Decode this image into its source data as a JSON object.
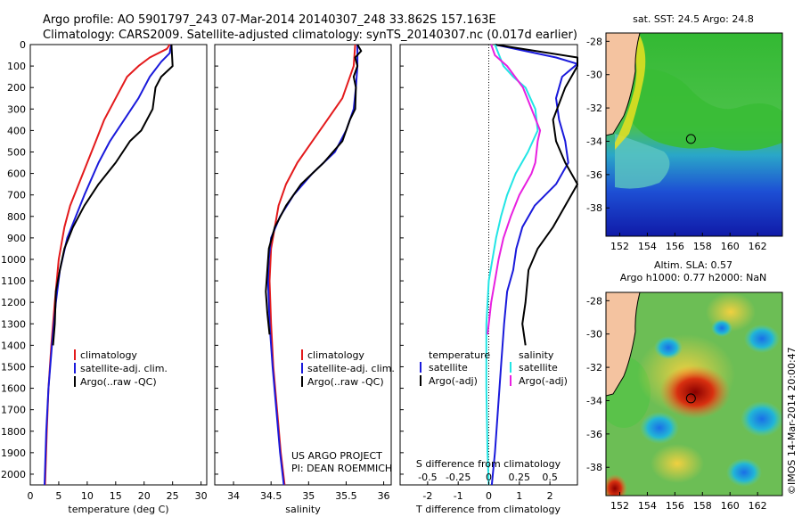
{
  "header": {
    "line1": "Argo profile: AO 5901797_243 07-Mar-2014 20140307_248 33.862S 157.163E",
    "line2": "Climatology: CARS2009. Satellite-adjusted climatology: synTS_20140307.nc (0.017d earlier)"
  },
  "depth_ticks": [
    "0",
    "100",
    "200",
    "300",
    "400",
    "500",
    "600",
    "700",
    "800",
    "900",
    "1000",
    "1100",
    "1200",
    "1300",
    "1400",
    "1500",
    "1600",
    "1700",
    "1800",
    "1900",
    "2000"
  ],
  "colors": {
    "climatology": "#e31a1c",
    "satellite": "#1a1adb",
    "argo": "#000000",
    "sat_s": "#22e5e5",
    "argo_s": "#e820e0",
    "land": "#f4c3a0"
  },
  "chart_data": [
    {
      "type": "line",
      "id": "temperature",
      "xlabel": "temperature (deg C)",
      "xlim": [
        0,
        31
      ],
      "xticks": [
        "0",
        "5",
        "10",
        "15",
        "20",
        "25",
        "30"
      ],
      "ylim": [
        0,
        2050
      ],
      "y_reversed": true,
      "legend": [
        "climatology",
        "satellite-adj. clim.",
        "Argo(..raw -QC)"
      ],
      "series": [
        {
          "name": "climatology",
          "color": "#e31a1c",
          "points": [
            [
              24.5,
              0
            ],
            [
              24,
              20
            ],
            [
              21,
              60
            ],
            [
              19,
              100
            ],
            [
              17,
              150
            ],
            [
              15,
              250
            ],
            [
              13,
              350
            ],
            [
              11.5,
              450
            ],
            [
              10,
              550
            ],
            [
              8.5,
              650
            ],
            [
              7,
              750
            ],
            [
              6,
              850
            ],
            [
              5,
              1000
            ],
            [
              4.3,
              1200
            ],
            [
              3.7,
              1400
            ],
            [
              3.2,
              1600
            ],
            [
              2.9,
              1800
            ],
            [
              2.6,
              2050
            ]
          ]
        },
        {
          "name": "satellite-adj. clim.",
          "color": "#1a1adb",
          "points": [
            [
              24.8,
              0
            ],
            [
              24.6,
              20
            ],
            [
              24.5,
              40
            ],
            [
              23,
              80
            ],
            [
              21,
              150
            ],
            [
              19,
              250
            ],
            [
              16.5,
              350
            ],
            [
              14,
              450
            ],
            [
              12,
              550
            ],
            [
              9.5,
              700
            ],
            [
              8,
              800
            ],
            [
              6.5,
              900
            ],
            [
              5.2,
              1050
            ],
            [
              4.5,
              1200
            ],
            [
              3.8,
              1400
            ],
            [
              3.2,
              1600
            ],
            [
              2.8,
              1800
            ],
            [
              2.5,
              2050
            ]
          ]
        },
        {
          "name": "Argo(..raw -QC)",
          "color": "#000000",
          "points": [
            [
              24.8,
              0
            ],
            [
              25,
              100
            ],
            [
              23,
              150
            ],
            [
              22,
              200
            ],
            [
              21.5,
              300
            ],
            [
              19.5,
              400
            ],
            [
              17.5,
              450
            ],
            [
              15,
              550
            ],
            [
              12,
              650
            ],
            [
              9.5,
              750
            ],
            [
              7.5,
              850
            ],
            [
              6,
              950
            ],
            [
              5.2,
              1050
            ],
            [
              4.5,
              1150
            ],
            [
              4.3,
              1300
            ],
            [
              4,
              1400
            ]
          ]
        }
      ]
    },
    {
      "type": "line",
      "id": "salinity",
      "xlabel": "salinity",
      "xlim": [
        33.75,
        36.1
      ],
      "xticks": [
        "34",
        "34.5",
        "35",
        "35.5",
        "36"
      ],
      "ylim": [
        0,
        2050
      ],
      "y_reversed": true,
      "legend": [
        "climatology",
        "satellite-adj. clim.",
        "Argo(..raw -QC)"
      ],
      "annotation": [
        "US ARGO PROJECT",
        "PI: DEAN ROEMMICH"
      ],
      "series": [
        {
          "name": "climatology",
          "color": "#e31a1c",
          "points": [
            [
              35.62,
              0
            ],
            [
              35.6,
              100
            ],
            [
              35.55,
              150
            ],
            [
              35.45,
              250
            ],
            [
              35.25,
              350
            ],
            [
              35.05,
              450
            ],
            [
              34.85,
              550
            ],
            [
              34.7,
              650
            ],
            [
              34.6,
              750
            ],
            [
              34.55,
              850
            ],
            [
              34.5,
              950
            ],
            [
              34.48,
              1100
            ],
            [
              34.5,
              1300
            ],
            [
              34.53,
              1500
            ],
            [
              34.58,
              1700
            ],
            [
              34.63,
              1900
            ],
            [
              34.68,
              2050
            ]
          ]
        },
        {
          "name": "satellite-adj. clim.",
          "color": "#1a1adb",
          "points": [
            [
              35.65,
              0
            ],
            [
              35.65,
              100
            ],
            [
              35.63,
              200
            ],
            [
              35.6,
              300
            ],
            [
              35.5,
              400
            ],
            [
              35.35,
              500
            ],
            [
              35.05,
              600
            ],
            [
              34.8,
              700
            ],
            [
              34.62,
              800
            ],
            [
              34.5,
              900
            ],
            [
              34.47,
              1000
            ],
            [
              34.46,
              1100
            ],
            [
              34.48,
              1300
            ],
            [
              34.52,
              1500
            ],
            [
              34.57,
              1700
            ],
            [
              34.62,
              1900
            ],
            [
              34.67,
              2050
            ]
          ]
        },
        {
          "name": "Argo(..raw -QC)",
          "color": "#000000",
          "points": [
            [
              35.65,
              0
            ],
            [
              35.7,
              30
            ],
            [
              35.62,
              60
            ],
            [
              35.65,
              100
            ],
            [
              35.6,
              150
            ],
            [
              35.63,
              200
            ],
            [
              35.62,
              300
            ],
            [
              35.55,
              350
            ],
            [
              35.45,
              450
            ],
            [
              35.2,
              550
            ],
            [
              34.9,
              650
            ],
            [
              34.7,
              750
            ],
            [
              34.55,
              850
            ],
            [
              34.47,
              950
            ],
            [
              34.45,
              1050
            ],
            [
              34.43,
              1150
            ],
            [
              34.45,
              1250
            ],
            [
              34.48,
              1350
            ]
          ]
        }
      ]
    },
    {
      "type": "line",
      "id": "difference",
      "xlabel": "T difference from climatology",
      "xlabel_top": "S difference from climatology",
      "xlim": [
        -2.9,
        2.9
      ],
      "xticks": [
        "-2",
        "-1",
        "0",
        "1",
        "2"
      ],
      "sticks": [
        "-0.5",
        "-0.25",
        "0",
        "0.25",
        "0.5"
      ],
      "ylim": [
        0,
        2050
      ],
      "y_reversed": true,
      "legend_temperature": {
        "title": "temperature",
        "items": [
          "satellite",
          "Argo(-adj)"
        ]
      },
      "legend_salinity": {
        "title": "salinity",
        "items": [
          "satellite",
          "Argo(-adj)"
        ]
      },
      "series": [
        {
          "name": "temperature satellite",
          "color": "#1a1adb",
          "points": [
            [
              0.2,
              0
            ],
            [
              2.2,
              60
            ],
            [
              2.9,
              90
            ],
            [
              2.4,
              150
            ],
            [
              2.2,
              250
            ],
            [
              2.3,
              350
            ],
            [
              2.5,
              450
            ],
            [
              2.6,
              550
            ],
            [
              2.2,
              650
            ],
            [
              1.5,
              750
            ],
            [
              1.1,
              850
            ],
            [
              0.9,
              950
            ],
            [
              0.8,
              1050
            ],
            [
              0.6,
              1150
            ],
            [
              0.5,
              1300
            ],
            [
              0.4,
              1500
            ],
            [
              0.3,
              1700
            ],
            [
              0.2,
              1900
            ],
            [
              0.1,
              2050
            ]
          ]
        },
        {
          "name": "temperature Argo(-adj)",
          "color": "#000000",
          "points": [
            [
              0.2,
              0
            ],
            [
              2.9,
              60
            ],
            [
              2.9,
              100
            ],
            [
              2.5,
              200
            ],
            [
              2.1,
              350
            ],
            [
              2.2,
              450
            ],
            [
              2.5,
              550
            ],
            [
              2.9,
              650
            ],
            [
              2.5,
              750
            ],
            [
              2.1,
              850
            ],
            [
              1.6,
              950
            ],
            [
              1.3,
              1050
            ],
            [
              1.2,
              1200
            ],
            [
              1.1,
              1300
            ],
            [
              1.2,
              1400
            ]
          ]
        },
        {
          "name": "salinity satellite",
          "color": "#22e5e5",
          "points": [
            [
              0.05,
              0
            ],
            [
              0.12,
              100
            ],
            [
              0.2,
              150
            ],
            [
              0.3,
              200
            ],
            [
              0.38,
              300
            ],
            [
              0.4,
              400
            ],
            [
              0.32,
              500
            ],
            [
              0.22,
              600
            ],
            [
              0.15,
              700
            ],
            [
              0.1,
              800
            ],
            [
              0.06,
              900
            ],
            [
              0.03,
              1000
            ],
            [
              0,
              1100
            ],
            [
              -0.02,
              1300
            ],
            [
              -0.02,
              1600
            ],
            [
              -0.01,
              1900
            ],
            [
              0,
              2050
            ]
          ]
        },
        {
          "name": "salinity Argo(-adj)",
          "color": "#e820e0",
          "points": [
            [
              0.02,
              0
            ],
            [
              0.05,
              50
            ],
            [
              0.15,
              100
            ],
            [
              0.28,
              200
            ],
            [
              0.35,
              300
            ],
            [
              0.42,
              400
            ],
            [
              0.4,
              450
            ],
            [
              0.38,
              550
            ],
            [
              0.35,
              600
            ],
            [
              0.3,
              650
            ],
            [
              0.25,
              700
            ],
            [
              0.18,
              800
            ],
            [
              0.12,
              900
            ],
            [
              0.08,
              1000
            ],
            [
              0.05,
              1100
            ],
            [
              0.02,
              1200
            ],
            [
              0,
              1300
            ],
            [
              -0.01,
              1350
            ]
          ]
        }
      ]
    }
  ],
  "map_top": {
    "title": "sat. SST: 24.5  Argo: 24.8",
    "yticks": [
      "-28",
      "-30",
      "-32",
      "-34",
      "-36",
      "-38"
    ],
    "xticks": [
      "152",
      "154",
      "156",
      "158",
      "160",
      "162"
    ],
    "argo_lon": 157.163,
    "argo_lat": -33.862
  },
  "map_bottom": {
    "title1": "Altim. SLA: 0.57",
    "title2": "Argo h1000: 0.77 h2000: NaN",
    "yticks": [
      "-28",
      "-30",
      "-32",
      "-34",
      "-36",
      "-38"
    ],
    "xticks": [
      "152",
      "154",
      "156",
      "158",
      "160",
      "162"
    ],
    "argo_lon": 157.163,
    "argo_lat": -33.862
  },
  "side_stamp": "©IMOS 14-Mar-2014 20:00:47"
}
